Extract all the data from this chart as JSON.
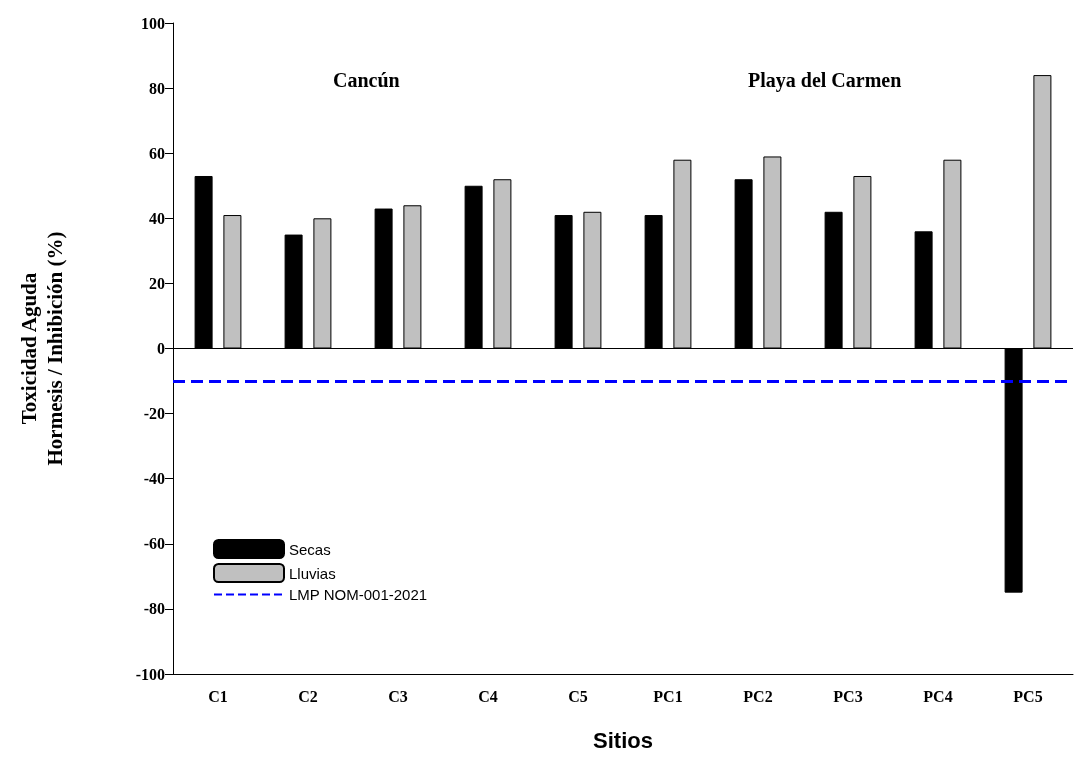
{
  "chart_data": {
    "type": "bar",
    "xlabel": "Sitios",
    "ylabel": "Toxicidad Aguda\nHormesis / Inhibición (%)",
    "categories": [
      "C1",
      "C2",
      "C3",
      "C4",
      "C5",
      "PC1",
      "PC2",
      "PC3",
      "PC4",
      "PC5"
    ],
    "series": [
      {
        "name": "Secas",
        "color": "#000000",
        "values": [
          53,
          35,
          43,
          50,
          41,
          41,
          52,
          42,
          36,
          -75
        ]
      },
      {
        "name": "Lluvias",
        "color": "#c0c0c0",
        "values": [
          41,
          40,
          44,
          52,
          42,
          58,
          59,
          53,
          58,
          84
        ]
      }
    ],
    "ylim": [
      -100,
      100
    ],
    "yticks": [
      -100,
      -80,
      -60,
      -40,
      -20,
      0,
      20,
      40,
      60,
      80,
      100
    ],
    "ref_lines": [
      {
        "axis": "y",
        "value": 0,
        "color": "#000000",
        "line_style": "solid"
      },
      {
        "axis": "y",
        "value": -10,
        "label": "LMP NOM-001-2021",
        "color": "#0000ff",
        "line_style": "dashed"
      }
    ],
    "annotations": [
      "Cancún",
      "Playa del Carmen"
    ],
    "legend": "bottom left",
    "grid": false
  }
}
